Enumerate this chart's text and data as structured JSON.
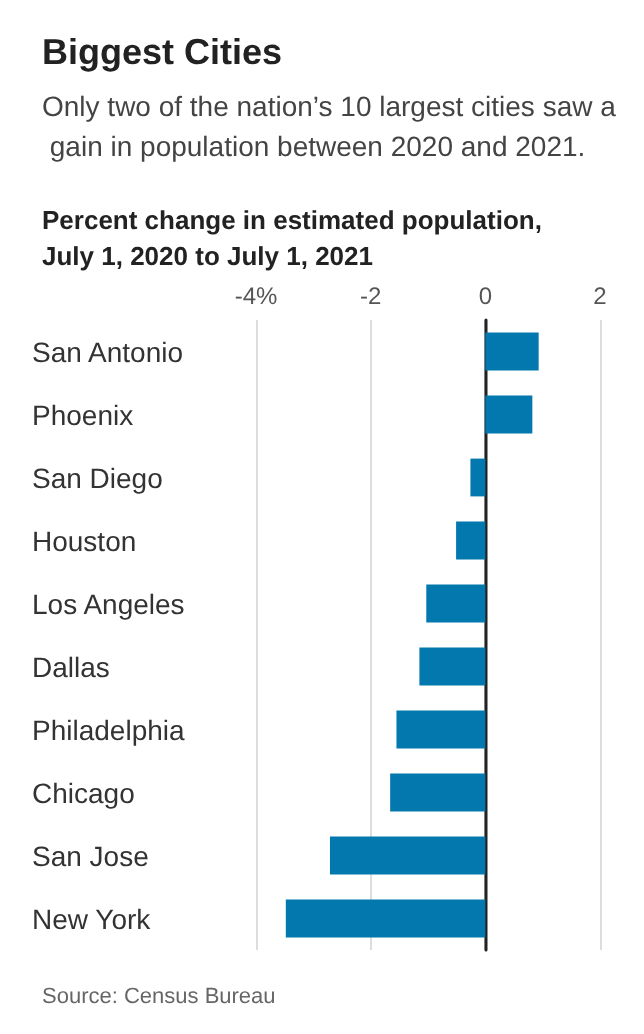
{
  "chart_data": {
    "type": "bar",
    "orientation": "horizontal",
    "title": "Biggest Cities",
    "subtitle": "Only two of the nation’s 10 largest cities saw a gain in population between 2020 and 2021.",
    "xlabel": "Percent change in estimated population, July 1, 2020 to July 1, 2021",
    "categories": [
      "San Antonio",
      "Phoenix",
      "San Diego",
      "Houston",
      "Los Angeles",
      "Dallas",
      "Philadelphia",
      "Chicago",
      "San Jose",
      "New York"
    ],
    "values": [
      0.93,
      0.82,
      -0.26,
      -0.51,
      -1.03,
      -1.15,
      -1.55,
      -1.66,
      -2.71,
      -3.48
    ],
    "color": "#0278ae",
    "xlim": [
      -4,
      2
    ],
    "xticks": [
      {
        "value": -4,
        "label": "-4%"
      },
      -2,
      0,
      2
    ],
    "grid": "x",
    "annotations": [
      "Source: Census Bureau"
    ]
  }
}
